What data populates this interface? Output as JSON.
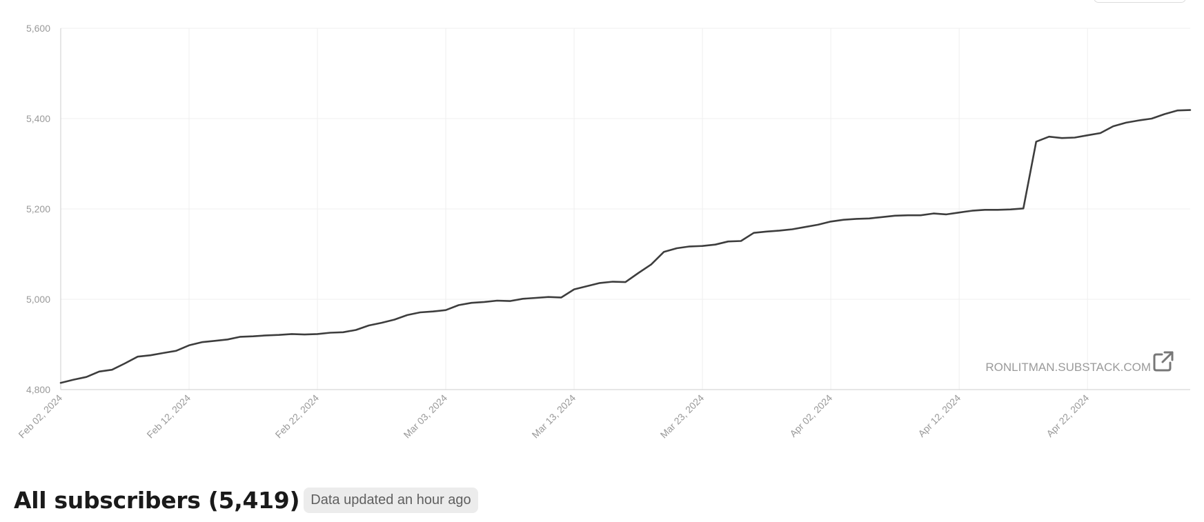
{
  "chart_data": {
    "type": "line",
    "title": "",
    "xlabel": "",
    "ylabel": "",
    "ylim": [
      4800,
      5600
    ],
    "xlim": [
      "2024-02-02",
      "2024-04-30"
    ],
    "yticks": [
      4800,
      5000,
      5200,
      5400,
      5600
    ],
    "ytick_labels": [
      "4,800",
      "5,000",
      "5,200",
      "5,400",
      "5,600"
    ],
    "xticks": [
      "2024-02-02",
      "2024-02-12",
      "2024-02-22",
      "2024-03-03",
      "2024-03-13",
      "2024-03-23",
      "2024-04-02",
      "2024-04-12",
      "2024-04-22"
    ],
    "xtick_labels": [
      "Feb 02, 2024",
      "Feb 12, 2024",
      "Feb 22, 2024",
      "Mar 03, 2024",
      "Mar 13, 2024",
      "Mar 23, 2024",
      "Apr 02, 2024",
      "Apr 12, 2024",
      "Apr 22, 2024"
    ],
    "grid": true,
    "line_color": "#3d3d3d",
    "series": [
      {
        "x": [
          "2024-02-02",
          "2024-02-03",
          "2024-02-04",
          "2024-02-05",
          "2024-02-06",
          "2024-02-07",
          "2024-02-08",
          "2024-02-09",
          "2024-02-10",
          "2024-02-11",
          "2024-02-12",
          "2024-02-13",
          "2024-02-14",
          "2024-02-15",
          "2024-02-16",
          "2024-02-17",
          "2024-02-18",
          "2024-02-19",
          "2024-02-20",
          "2024-02-21",
          "2024-02-22",
          "2024-02-23",
          "2024-02-24",
          "2024-02-25",
          "2024-02-26",
          "2024-02-27",
          "2024-02-28",
          "2024-02-29",
          "2024-03-01",
          "2024-03-02",
          "2024-03-03",
          "2024-03-04",
          "2024-03-05",
          "2024-03-06",
          "2024-03-07",
          "2024-03-08",
          "2024-03-09",
          "2024-03-10",
          "2024-03-11",
          "2024-03-12",
          "2024-03-13",
          "2024-03-14",
          "2024-03-15",
          "2024-03-16",
          "2024-03-17",
          "2024-03-18",
          "2024-03-19",
          "2024-03-20",
          "2024-03-21",
          "2024-03-22",
          "2024-03-23",
          "2024-03-24",
          "2024-03-25",
          "2024-03-26",
          "2024-03-27",
          "2024-03-28",
          "2024-03-29",
          "2024-03-30",
          "2024-03-31",
          "2024-04-01",
          "2024-04-02",
          "2024-04-03",
          "2024-04-04",
          "2024-04-05",
          "2024-04-06",
          "2024-04-07",
          "2024-04-08",
          "2024-04-09",
          "2024-04-10",
          "2024-04-11",
          "2024-04-12",
          "2024-04-13",
          "2024-04-14",
          "2024-04-15",
          "2024-04-16",
          "2024-04-17",
          "2024-04-18",
          "2024-04-19",
          "2024-04-20",
          "2024-04-21",
          "2024-04-22",
          "2024-04-23",
          "2024-04-24",
          "2024-04-25",
          "2024-04-26",
          "2024-04-27",
          "2024-04-28",
          "2024-04-29",
          "2024-04-30"
        ],
        "values": [
          4815,
          4822,
          4828,
          4840,
          4844,
          4858,
          4873,
          4876,
          4881,
          4886,
          4898,
          4905,
          4908,
          4911,
          4917,
          4918,
          4920,
          4921,
          4923,
          4922,
          4923,
          4926,
          4927,
          4932,
          4942,
          4948,
          4955,
          4965,
          4971,
          4973,
          4976,
          4987,
          4992,
          4994,
          4997,
          4996,
          5001,
          5003,
          5005,
          5004,
          5022,
          5029,
          5036,
          5039,
          5038,
          5058,
          5077,
          5105,
          5113,
          5117,
          5118,
          5121,
          5128,
          5129,
          5147,
          5150,
          5152,
          5155,
          5160,
          5165,
          5172,
          5176,
          5178,
          5179,
          5182,
          5185,
          5186,
          5186,
          5190,
          5188,
          5192,
          5196,
          5198,
          5198,
          5199,
          5201,
          5349,
          5360,
          5357,
          5358,
          5363,
          5368,
          5383,
          5391,
          5396,
          5400,
          5410,
          5418,
          5419
        ]
      }
    ]
  },
  "watermark": {
    "text": "RONLITMAN.SUBSTACK.COM",
    "icon": "external-link-icon"
  },
  "footer": {
    "title": "All subscribers (5,419)",
    "badge": "Data updated an hour ago"
  }
}
